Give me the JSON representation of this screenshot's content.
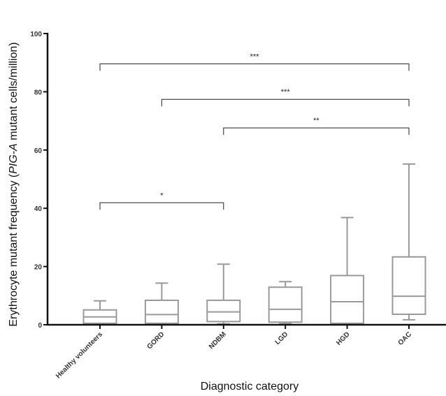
{
  "chart_data": {
    "type": "box",
    "xlabel": "Diagnostic category",
    "ylabel_prefix": "Erythrocyte mutant frequency (",
    "ylabel_italic": "PIG-A",
    "ylabel_suffix": " mutant cells/million)",
    "ylim": [
      0,
      100
    ],
    "yticks": [
      0,
      20,
      40,
      60,
      80,
      100
    ],
    "grid": false,
    "colors": {
      "box": "#9a9a9a",
      "axis": "#111111",
      "bracket": "#222222"
    },
    "categories": [
      "Healthy volunteers",
      "GORD",
      "NDBM",
      "LGD",
      "HGD",
      "OAC"
    ],
    "boxes": [
      {
        "min": 0.3,
        "q1": 0.5,
        "median": 2.7,
        "q3": 5.1,
        "max": 8.2
      },
      {
        "min": 0.2,
        "q1": 0.5,
        "median": 3.5,
        "q3": 8.4,
        "max": 14.3
      },
      {
        "min": 0.3,
        "q1": 1.1,
        "median": 4.4,
        "q3": 8.4,
        "max": 20.8
      },
      {
        "min": 0.4,
        "q1": 0.9,
        "median": 5.3,
        "q3": 12.9,
        "max": 14.8
      },
      {
        "min": 0.3,
        "q1": 0.5,
        "median": 7.9,
        "q3": 16.9,
        "max": 36.8
      },
      {
        "min": 1.7,
        "q1": 3.6,
        "median": 9.8,
        "q3": 23.3,
        "max": 55.2
      }
    ],
    "significance": [
      {
        "from": "Healthy volunteers",
        "to": "OAC",
        "y": 89.6,
        "label": "***"
      },
      {
        "from": "GORD",
        "to": "OAC",
        "y": 77.4,
        "label": "***"
      },
      {
        "from": "NDBM",
        "to": "OAC",
        "y": 67.6,
        "label": "**"
      },
      {
        "from": "Healthy volunteers",
        "to": "NDBM",
        "y": 41.9,
        "label": "*"
      }
    ]
  }
}
